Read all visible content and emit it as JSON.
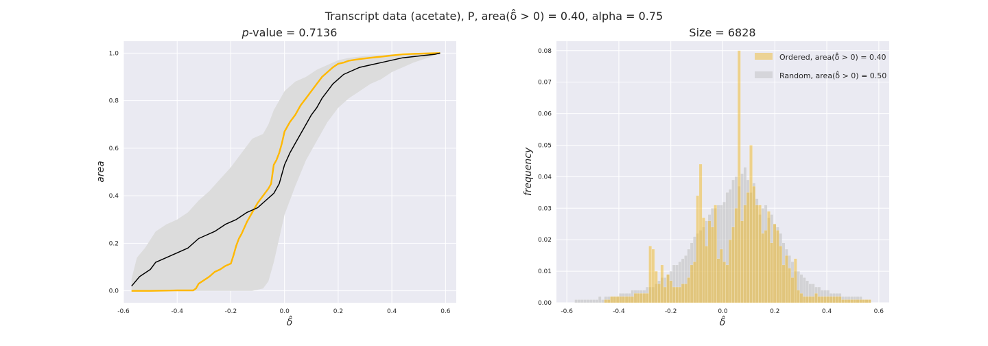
{
  "figure": {
    "suptitle": "Transcript data (acetate), P, area(δ̂ > 0) = 0.40, alpha = 0.75"
  },
  "chart_data": [
    {
      "type": "line",
      "title_prefix": "p",
      "title_rest": "-value = 0.7136",
      "xlabel": "δ̂",
      "ylabel": "area",
      "xlim": [
        -0.6,
        0.64
      ],
      "ylim": [
        -0.05,
        1.05
      ],
      "xticks": [
        "-0.6",
        "-0.4",
        "-0.2",
        "0.0",
        "0.2",
        "0.4",
        "0.6"
      ],
      "yticks": [
        "0.0",
        "0.2",
        "0.4",
        "0.6",
        "0.8",
        "1.0"
      ],
      "grid": true,
      "band": {
        "x": [
          -0.57,
          -0.55,
          -0.52,
          -0.48,
          -0.44,
          -0.4,
          -0.36,
          -0.32,
          -0.28,
          -0.24,
          -0.2,
          -0.16,
          -0.12,
          -0.08,
          -0.06,
          -0.04,
          -0.02,
          0.0,
          0.04,
          0.08,
          0.12,
          0.16,
          0.2,
          0.24,
          0.28,
          0.32,
          0.36,
          0.4,
          0.44,
          0.48,
          0.52,
          0.56,
          0.58
        ],
        "upper": [
          0.05,
          0.14,
          0.18,
          0.25,
          0.28,
          0.3,
          0.33,
          0.38,
          0.42,
          0.47,
          0.52,
          0.58,
          0.64,
          0.66,
          0.7,
          0.76,
          0.8,
          0.84,
          0.88,
          0.9,
          0.93,
          0.95,
          0.97,
          0.98,
          0.985,
          0.99,
          0.99,
          0.995,
          0.995,
          0.998,
          1.0,
          1.0,
          1.0
        ],
        "lower": [
          0.0,
          0.0,
          0.0,
          0.0,
          0.0,
          0.0,
          0.0,
          0.0,
          0.0,
          0.0,
          0.0,
          0.0,
          0.0,
          0.01,
          0.04,
          0.12,
          0.22,
          0.32,
          0.44,
          0.55,
          0.63,
          0.71,
          0.77,
          0.81,
          0.84,
          0.87,
          0.89,
          0.92,
          0.94,
          0.96,
          0.975,
          0.99,
          1.0
        ]
      },
      "series": [
        {
          "color": "#FFB800",
          "x": [
            -0.57,
            -0.5,
            -0.4,
            -0.34,
            -0.33,
            -0.32,
            -0.3,
            -0.28,
            -0.26,
            -0.24,
            -0.22,
            -0.2,
            -0.19,
            -0.18,
            -0.17,
            -0.16,
            -0.14,
            -0.12,
            -0.1,
            -0.08,
            -0.06,
            -0.05,
            -0.04,
            -0.03,
            -0.02,
            -0.01,
            0.0,
            0.02,
            0.04,
            0.06,
            0.08,
            0.1,
            0.12,
            0.14,
            0.16,
            0.18,
            0.2,
            0.22,
            0.24,
            0.28,
            0.32,
            0.36,
            0.4,
            0.44,
            0.48,
            0.52,
            0.58
          ],
          "y": [
            0.0,
            0.0,
            0.002,
            0.002,
            0.01,
            0.03,
            0.045,
            0.06,
            0.08,
            0.09,
            0.105,
            0.115,
            0.15,
            0.19,
            0.22,
            0.24,
            0.29,
            0.33,
            0.37,
            0.4,
            0.43,
            0.45,
            0.53,
            0.55,
            0.58,
            0.62,
            0.67,
            0.71,
            0.74,
            0.78,
            0.81,
            0.84,
            0.87,
            0.9,
            0.92,
            0.94,
            0.955,
            0.96,
            0.968,
            0.975,
            0.98,
            0.985,
            0.99,
            0.995,
            0.997,
            0.998,
            1.0
          ]
        },
        {
          "color": "#000000",
          "x": [
            -0.57,
            -0.54,
            -0.5,
            -0.48,
            -0.44,
            -0.4,
            -0.36,
            -0.32,
            -0.3,
            -0.26,
            -0.22,
            -0.18,
            -0.14,
            -0.1,
            -0.08,
            -0.04,
            -0.02,
            0.0,
            0.02,
            0.04,
            0.06,
            0.08,
            0.1,
            0.12,
            0.14,
            0.16,
            0.18,
            0.2,
            0.22,
            0.24,
            0.28,
            0.32,
            0.36,
            0.4,
            0.44,
            0.48,
            0.52,
            0.56,
            0.58
          ],
          "y": [
            0.02,
            0.06,
            0.09,
            0.12,
            0.14,
            0.16,
            0.18,
            0.22,
            0.23,
            0.25,
            0.28,
            0.3,
            0.33,
            0.35,
            0.37,
            0.41,
            0.45,
            0.53,
            0.58,
            0.62,
            0.66,
            0.7,
            0.74,
            0.77,
            0.81,
            0.84,
            0.87,
            0.89,
            0.91,
            0.92,
            0.94,
            0.95,
            0.96,
            0.97,
            0.98,
            0.985,
            0.99,
            0.995,
            1.0
          ]
        }
      ]
    },
    {
      "type": "bar",
      "title": "Size = 6828",
      "xlabel": "δ̂",
      "ylabel": "frequency",
      "xlim": [
        -0.64,
        0.64
      ],
      "ylim": [
        0,
        0.083
      ],
      "xticks": [
        "-0.6",
        "-0.4",
        "-0.2",
        "0.0",
        "0.2",
        "0.4",
        "0.6"
      ],
      "yticks": [
        "0.00",
        "0.01",
        "0.02",
        "0.03",
        "0.04",
        "0.05",
        "0.06",
        "0.07",
        "0.08"
      ],
      "grid": true,
      "legend_position": "top-right",
      "bin_start": -0.57,
      "bin_width": 0.0114,
      "series": [
        {
          "name": "Ordered, area(δ̂ > 0) = 0.40",
          "color": "#EFB723",
          "values": [
            0,
            0,
            0,
            0,
            0,
            0,
            0,
            0,
            0,
            0,
            0.001,
            0.001,
            0.002,
            0.002,
            0.002,
            0.002,
            0.002,
            0.002,
            0.002,
            0.002,
            0.003,
            0.003,
            0.003,
            0.003,
            0.003,
            0.018,
            0.017,
            0.01,
            0.006,
            0.012,
            0.005,
            0.009,
            0.007,
            0.005,
            0.005,
            0.005,
            0.006,
            0.006,
            0.008,
            0.012,
            0.013,
            0.034,
            0.044,
            0.027,
            0.018,
            0.026,
            0.024,
            0.031,
            0.014,
            0.017,
            0.013,
            0.012,
            0.02,
            0.024,
            0.03,
            0.08,
            0.026,
            0.031,
            0.035,
            0.05,
            0.037,
            0.031,
            0.031,
            0.022,
            0.023,
            0.029,
            0.019,
            0.025,
            0.023,
            0.018,
            0.012,
            0.015,
            0.011,
            0.008,
            0.014,
            0.004,
            0.003,
            0.002,
            0.002,
            0.002,
            0.002,
            0.003,
            0.002,
            0.002,
            0.002,
            0.002,
            0.002,
            0.002,
            0.002,
            0.002,
            0.001,
            0.001,
            0.001,
            0.001,
            0.001,
            0.001,
            0.001,
            0.001,
            0.001,
            0.001
          ]
        },
        {
          "name": "Random, area(δ̂ > 0) = 0.50",
          "color": "#BDBDBD",
          "values": [
            0.001,
            0.001,
            0.001,
            0.001,
            0.001,
            0.001,
            0.001,
            0.001,
            0.002,
            0.001,
            0.002,
            0.002,
            0.002,
            0.002,
            0.002,
            0.003,
            0.003,
            0.003,
            0.003,
            0.004,
            0.004,
            0.004,
            0.004,
            0.004,
            0.005,
            0.005,
            0.005,
            0.006,
            0.007,
            0.008,
            0.008,
            0.009,
            0.01,
            0.012,
            0.012,
            0.013,
            0.014,
            0.015,
            0.017,
            0.019,
            0.021,
            0.022,
            0.023,
            0.024,
            0.026,
            0.028,
            0.03,
            0.03,
            0.031,
            0.031,
            0.032,
            0.035,
            0.036,
            0.039,
            0.04,
            0.037,
            0.041,
            0.043,
            0.039,
            0.035,
            0.038,
            0.033,
            0.028,
            0.03,
            0.031,
            0.027,
            0.028,
            0.025,
            0.024,
            0.022,
            0.019,
            0.017,
            0.015,
            0.013,
            0.01,
            0.01,
            0.009,
            0.008,
            0.007,
            0.006,
            0.006,
            0.005,
            0.005,
            0.004,
            0.004,
            0.004,
            0.003,
            0.003,
            0.003,
            0.003,
            0.002,
            0.002,
            0.002,
            0.002,
            0.002,
            0.002,
            0.002,
            0.001,
            0.001,
            0.001
          ]
        }
      ]
    }
  ]
}
